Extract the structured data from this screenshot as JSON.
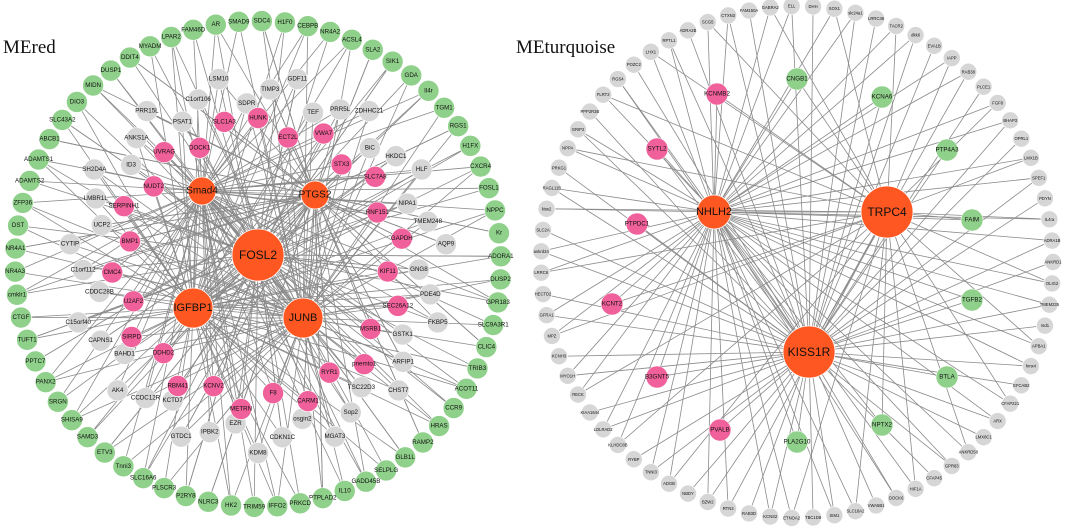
{
  "colors": {
    "hub": "#ff5722",
    "pink": "#f0609a",
    "grey": "#d6d6d6",
    "green": "#8fd08a",
    "edge": "#8a8a8a"
  },
  "networks": [
    {
      "title": "MEred",
      "hubs": [
        {
          "label": "FOSL2",
          "size": "xl"
        },
        {
          "label": "Smad4",
          "size": "m"
        },
        {
          "label": "PTGS2",
          "size": "m"
        },
        {
          "label": "IGFBP1",
          "size": "l"
        },
        {
          "label": "JUNB",
          "size": "l"
        }
      ],
      "pink": [
        "HUNK",
        "ECT2L",
        "VWA7",
        "STX3",
        "SLC7A8",
        "RNF151",
        "GAPDH",
        "KIF11",
        "SEC26A12",
        "MSRB1",
        "pnemto1",
        "RYR1",
        "CARM1",
        "F8",
        "METRN",
        "KCNV2",
        "RBM41",
        "DDHD2",
        "SIRPD",
        "U2AF2",
        "CMC4",
        "BMP1",
        "SERPINH1",
        "NUDT2",
        "UVRAG",
        "DOCK1",
        "SLC1A3"
      ],
      "grey": [
        "SDPR",
        "TIMP3",
        "GDF11",
        "TEF",
        "PRR5L",
        "ZDHHC21",
        "BiC",
        "HKDC1",
        "HLF",
        "NIPA1",
        "TMEM248",
        "AQP9",
        "GNG8",
        "PDE4D",
        "FKBP5",
        "GSTK1",
        "ARFIP1",
        "CHST7",
        "TSC22D3",
        "Sop2",
        "MGAT3",
        "osgin2",
        "CDKN1C",
        "KDM8",
        "EZR",
        "IPBK2",
        "GTDC1",
        "KCTD7",
        "CCDC12R",
        "AK4",
        "BAHD1",
        "CAPNS1",
        "C15orf40",
        "CDDC28B",
        "C1orf112",
        "CYTIP",
        "UCP2",
        "LMBR1L",
        "SH2D4A",
        "ID3",
        "ANKS1A",
        "PRR15L",
        "PSAT1",
        "C1orf106",
        "LSM10"
      ],
      "green": [
        "AR",
        "SMAD9",
        "SDC4",
        "H1F0",
        "CEBPB",
        "NR4A2",
        "ACSL4",
        "SLA2",
        "SIK1",
        "GDA",
        "Il4r",
        "TGM1",
        "RGS1",
        "H1FX",
        "CXCR4",
        "FOSL1",
        "NPPC",
        "Kr",
        "ADORA1",
        "DUSP2",
        "GPR183",
        "SLC9A3R1",
        "CLIC4",
        "TRIB3",
        "ACOT11",
        "CCR9",
        "HRAS",
        "RAMP2",
        "GLB1L",
        "SELPLG",
        "GADD45B",
        "IL10",
        "PTPLAD2",
        "PRKCD",
        "IFFO2",
        "TRIM59",
        "HK2",
        "NLRC3",
        "P2RY8",
        "PLSCR3",
        "SLC16A6",
        "Tnni3",
        "ETV3",
        "SAMD3",
        "SHISA9",
        "SRGN",
        "PANX2",
        "PPTC7",
        "TUFT1",
        "CTGF",
        "cmklr1",
        "NR4A3",
        "NR4A1",
        "DST",
        "ZFP36",
        "ADAMTS2",
        "ADAMTS1",
        "ABCB1",
        "SLC43A2",
        "DIO3",
        "MIDN",
        "DUSP1",
        "DDIT4",
        "MYADM",
        "LPAR2",
        "FAM46D"
      ]
    },
    {
      "title": "MEturquoise",
      "hubs": [
        {
          "label": "TRPC4",
          "size": "xl"
        },
        {
          "label": "NHLH2",
          "size": "l"
        },
        {
          "label": "KISS1R",
          "size": "xl"
        }
      ],
      "pink": [
        "KCNMB2",
        "SYTL2",
        "PTPDC1",
        "KCNT2",
        "B3GNT5",
        "PVALB"
      ],
      "green": [
        "CNGB1",
        "KCNA6",
        "PTP4A3",
        "FAIM",
        "TGFB2",
        "BTLA",
        "NPTX2",
        "PLA2G10"
      ],
      "grey": [
        "GABRA2",
        "ELL",
        "DHH",
        "SOX1",
        "slc24a1",
        "LRRC46",
        "TACR2",
        "dkk6",
        "EVA1B",
        "IAPP",
        "RAB38",
        "PLCE1",
        "FGF8",
        "BHAP3",
        "OPRL1",
        "LMX1B",
        "SPEF1",
        "PDYN",
        "IL4ra",
        "ADRA1B",
        "ANKRD1",
        "OLIG2",
        "TMEM235",
        "rsd1",
        "APBA1",
        "hmx4",
        "EFCAB2",
        "CFAP221",
        "ARX",
        "LMX8C1",
        "ANKRD58",
        "GPR83",
        "CFAP45",
        "HIF1A",
        "DOCK6",
        "VWA5B1",
        "SLC18A2",
        "SIM1",
        "TBC1D8",
        "ETNOA2",
        "KCNS2",
        "RAB3D",
        "RTN3",
        "BZW2",
        "NBDY",
        "ADGB",
        "TNNI3",
        "RYBP",
        "KLHDC8B",
        "LDLRAD2",
        "KIAA1644",
        "RECK",
        "MYO1H",
        "KCNH3",
        "MPZ",
        "GFRA1",
        "HECTD2",
        "LRRC6",
        "ankrd34",
        "SLC2A",
        "kiss2",
        "RAGL11B",
        "PRKG1",
        "NPPA",
        "GRIP2",
        "PPP2R3B",
        "FLRT2",
        "RGS4",
        "POZC2",
        "LHX1",
        "RPTL1",
        "ADRA2B",
        "SCG5",
        "CTXN3",
        "FAM150A"
      ]
    }
  ]
}
